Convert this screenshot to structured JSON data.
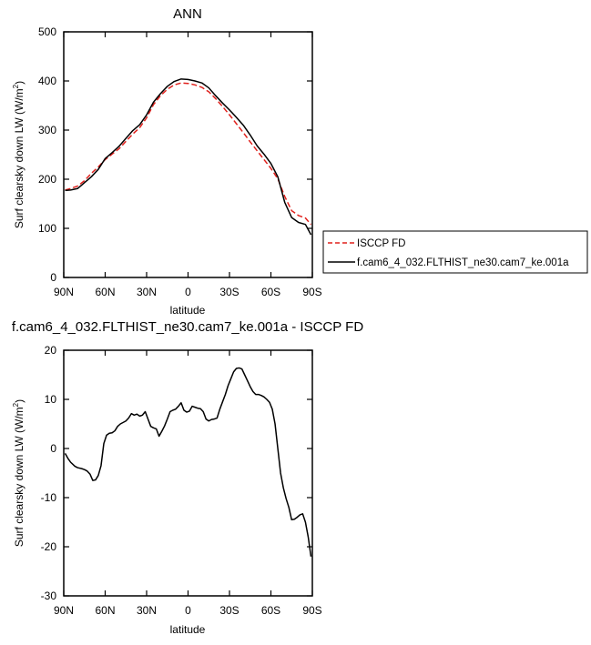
{
  "chart_data": [
    {
      "type": "line",
      "title": "ANN",
      "xlabel": "latitude",
      "ylabel": "Surf clearsky down LW (W/m",
      "ylabel_sup": "2",
      "ylabel_end": ")",
      "xlim": [
        90,
        -90
      ],
      "ylim": [
        0,
        500
      ],
      "xticks": [
        90,
        60,
        30,
        0,
        -30,
        -60,
        -90
      ],
      "xtick_labels": [
        "90N",
        "60N",
        "30N",
        "0",
        "30S",
        "60S",
        "90S"
      ],
      "yticks": [
        0,
        100,
        200,
        300,
        400,
        500
      ],
      "ytick_labels": [
        "0",
        "100",
        "200",
        "300",
        "400",
        "500"
      ],
      "grid": false,
      "legend_position": "right-outside",
      "series": [
        {
          "name": "ISCCP FD",
          "color": "#e0201c",
          "dash": "dashed",
          "x": [
            89,
            85,
            80,
            75,
            70,
            65,
            60,
            55,
            50,
            45,
            40,
            35,
            30,
            25,
            20,
            15,
            10,
            5,
            0,
            -5,
            -10,
            -15,
            -20,
            -25,
            -30,
            -35,
            -40,
            -45,
            -50,
            -55,
            -60,
            -65,
            -70,
            -75,
            -80,
            -85,
            -89
          ],
          "y": [
            178,
            181,
            186,
            197,
            212,
            225,
            240,
            251,
            262,
            277,
            292,
            305,
            325,
            352,
            370,
            383,
            392,
            396,
            395,
            392,
            387,
            378,
            364,
            348,
            331,
            313,
            295,
            276,
            258,
            240,
            222,
            201,
            165,
            136,
            126,
            121,
            108
          ]
        },
        {
          "name": "f.cam6_4_032.FLTHIST_ne30.cam7_ke.001a",
          "color": "#000000",
          "dash": "solid",
          "x": [
            89,
            85,
            80,
            75,
            70,
            65,
            60,
            55,
            50,
            45,
            40,
            35,
            30,
            25,
            20,
            15,
            10,
            5,
            0,
            -5,
            -10,
            -15,
            -20,
            -25,
            -30,
            -35,
            -40,
            -45,
            -50,
            -55,
            -60,
            -65,
            -70,
            -75,
            -80,
            -85,
            -89
          ],
          "y": [
            177,
            178,
            181,
            193,
            205,
            220,
            242,
            254,
            267,
            283,
            299,
            311,
            331,
            357,
            374,
            389,
            399,
            404,
            403,
            400,
            396,
            386,
            370,
            355,
            341,
            326,
            310,
            290,
            268,
            251,
            232,
            205,
            153,
            122,
            112,
            108,
            87
          ]
        }
      ]
    },
    {
      "type": "line",
      "title": "f.cam6_4_032.FLTHIST_ne30.cam7_ke.001a - ISCCP FD",
      "xlabel": "latitude",
      "ylabel": "Surf clearsky down LW (W/m",
      "ylabel_sup": "2",
      "ylabel_end": ")",
      "xlim": [
        90,
        -90
      ],
      "ylim": [
        -30,
        20
      ],
      "xticks": [
        90,
        60,
        30,
        0,
        -30,
        -60,
        -90
      ],
      "xtick_labels": [
        "90N",
        "60N",
        "30N",
        "0",
        "30S",
        "60S",
        "90S"
      ],
      "yticks": [
        -30,
        -20,
        -10,
        0,
        10,
        20
      ],
      "ytick_labels": [
        "-30",
        "-20",
        "-10",
        "0",
        "10",
        "20"
      ],
      "grid": false,
      "series": [
        {
          "color": "#000000",
          "dash": "solid",
          "x": [
            89,
            87,
            85,
            82,
            80,
            77,
            75,
            73,
            71,
            69,
            67,
            65,
            63,
            61,
            59,
            57,
            55,
            53,
            51,
            49,
            47,
            45,
            43,
            41,
            39,
            37,
            35,
            33,
            31,
            29,
            27,
            25,
            23,
            21,
            19,
            17,
            15,
            13,
            11,
            9,
            7,
            5,
            3,
            1,
            -1,
            -3,
            -5,
            -7,
            -9,
            -11,
            -13,
            -15,
            -17,
            -19,
            -21,
            -23,
            -25,
            -27,
            -29,
            -31,
            -33,
            -35,
            -37,
            -39,
            -41,
            -43,
            -45,
            -47,
            -49,
            -51,
            -53,
            -55,
            -57,
            -59,
            -61,
            -63,
            -65,
            -67,
            -69,
            -71,
            -73,
            -75,
            -77,
            -79,
            -81,
            -83,
            -85,
            -87,
            -89
          ],
          "y": [
            -1.0,
            -2.0,
            -2.8,
            -3.6,
            -3.9,
            -4.1,
            -4.3,
            -4.6,
            -5.2,
            -6.5,
            -6.4,
            -5.5,
            -3.5,
            1.0,
            2.7,
            3.1,
            3.2,
            3.6,
            4.5,
            5.0,
            5.3,
            5.6,
            6.2,
            7.1,
            6.8,
            7.0,
            6.6,
            6.8,
            7.5,
            6.0,
            4.5,
            4.2,
            4.0,
            2.5,
            3.5,
            4.6,
            6.0,
            7.5,
            7.8,
            8.0,
            8.6,
            9.3,
            7.8,
            7.4,
            7.6,
            8.6,
            8.4,
            8.2,
            8.1,
            7.5,
            6.0,
            5.6,
            5.9,
            6.0,
            6.2,
            8.0,
            9.5,
            11.0,
            12.8,
            14.2,
            15.6,
            16.3,
            16.4,
            16.2,
            15.0,
            13.8,
            12.6,
            11.6,
            11.0,
            11.0,
            10.8,
            10.5,
            10.0,
            9.4,
            8.0,
            5.0,
            0.0,
            -5.0,
            -8.0,
            -10.2,
            -12.0,
            -14.5,
            -14.4,
            -14.0,
            -13.5,
            -13.3,
            -15.0,
            -18.0,
            -22.0
          ]
        }
      ]
    }
  ]
}
